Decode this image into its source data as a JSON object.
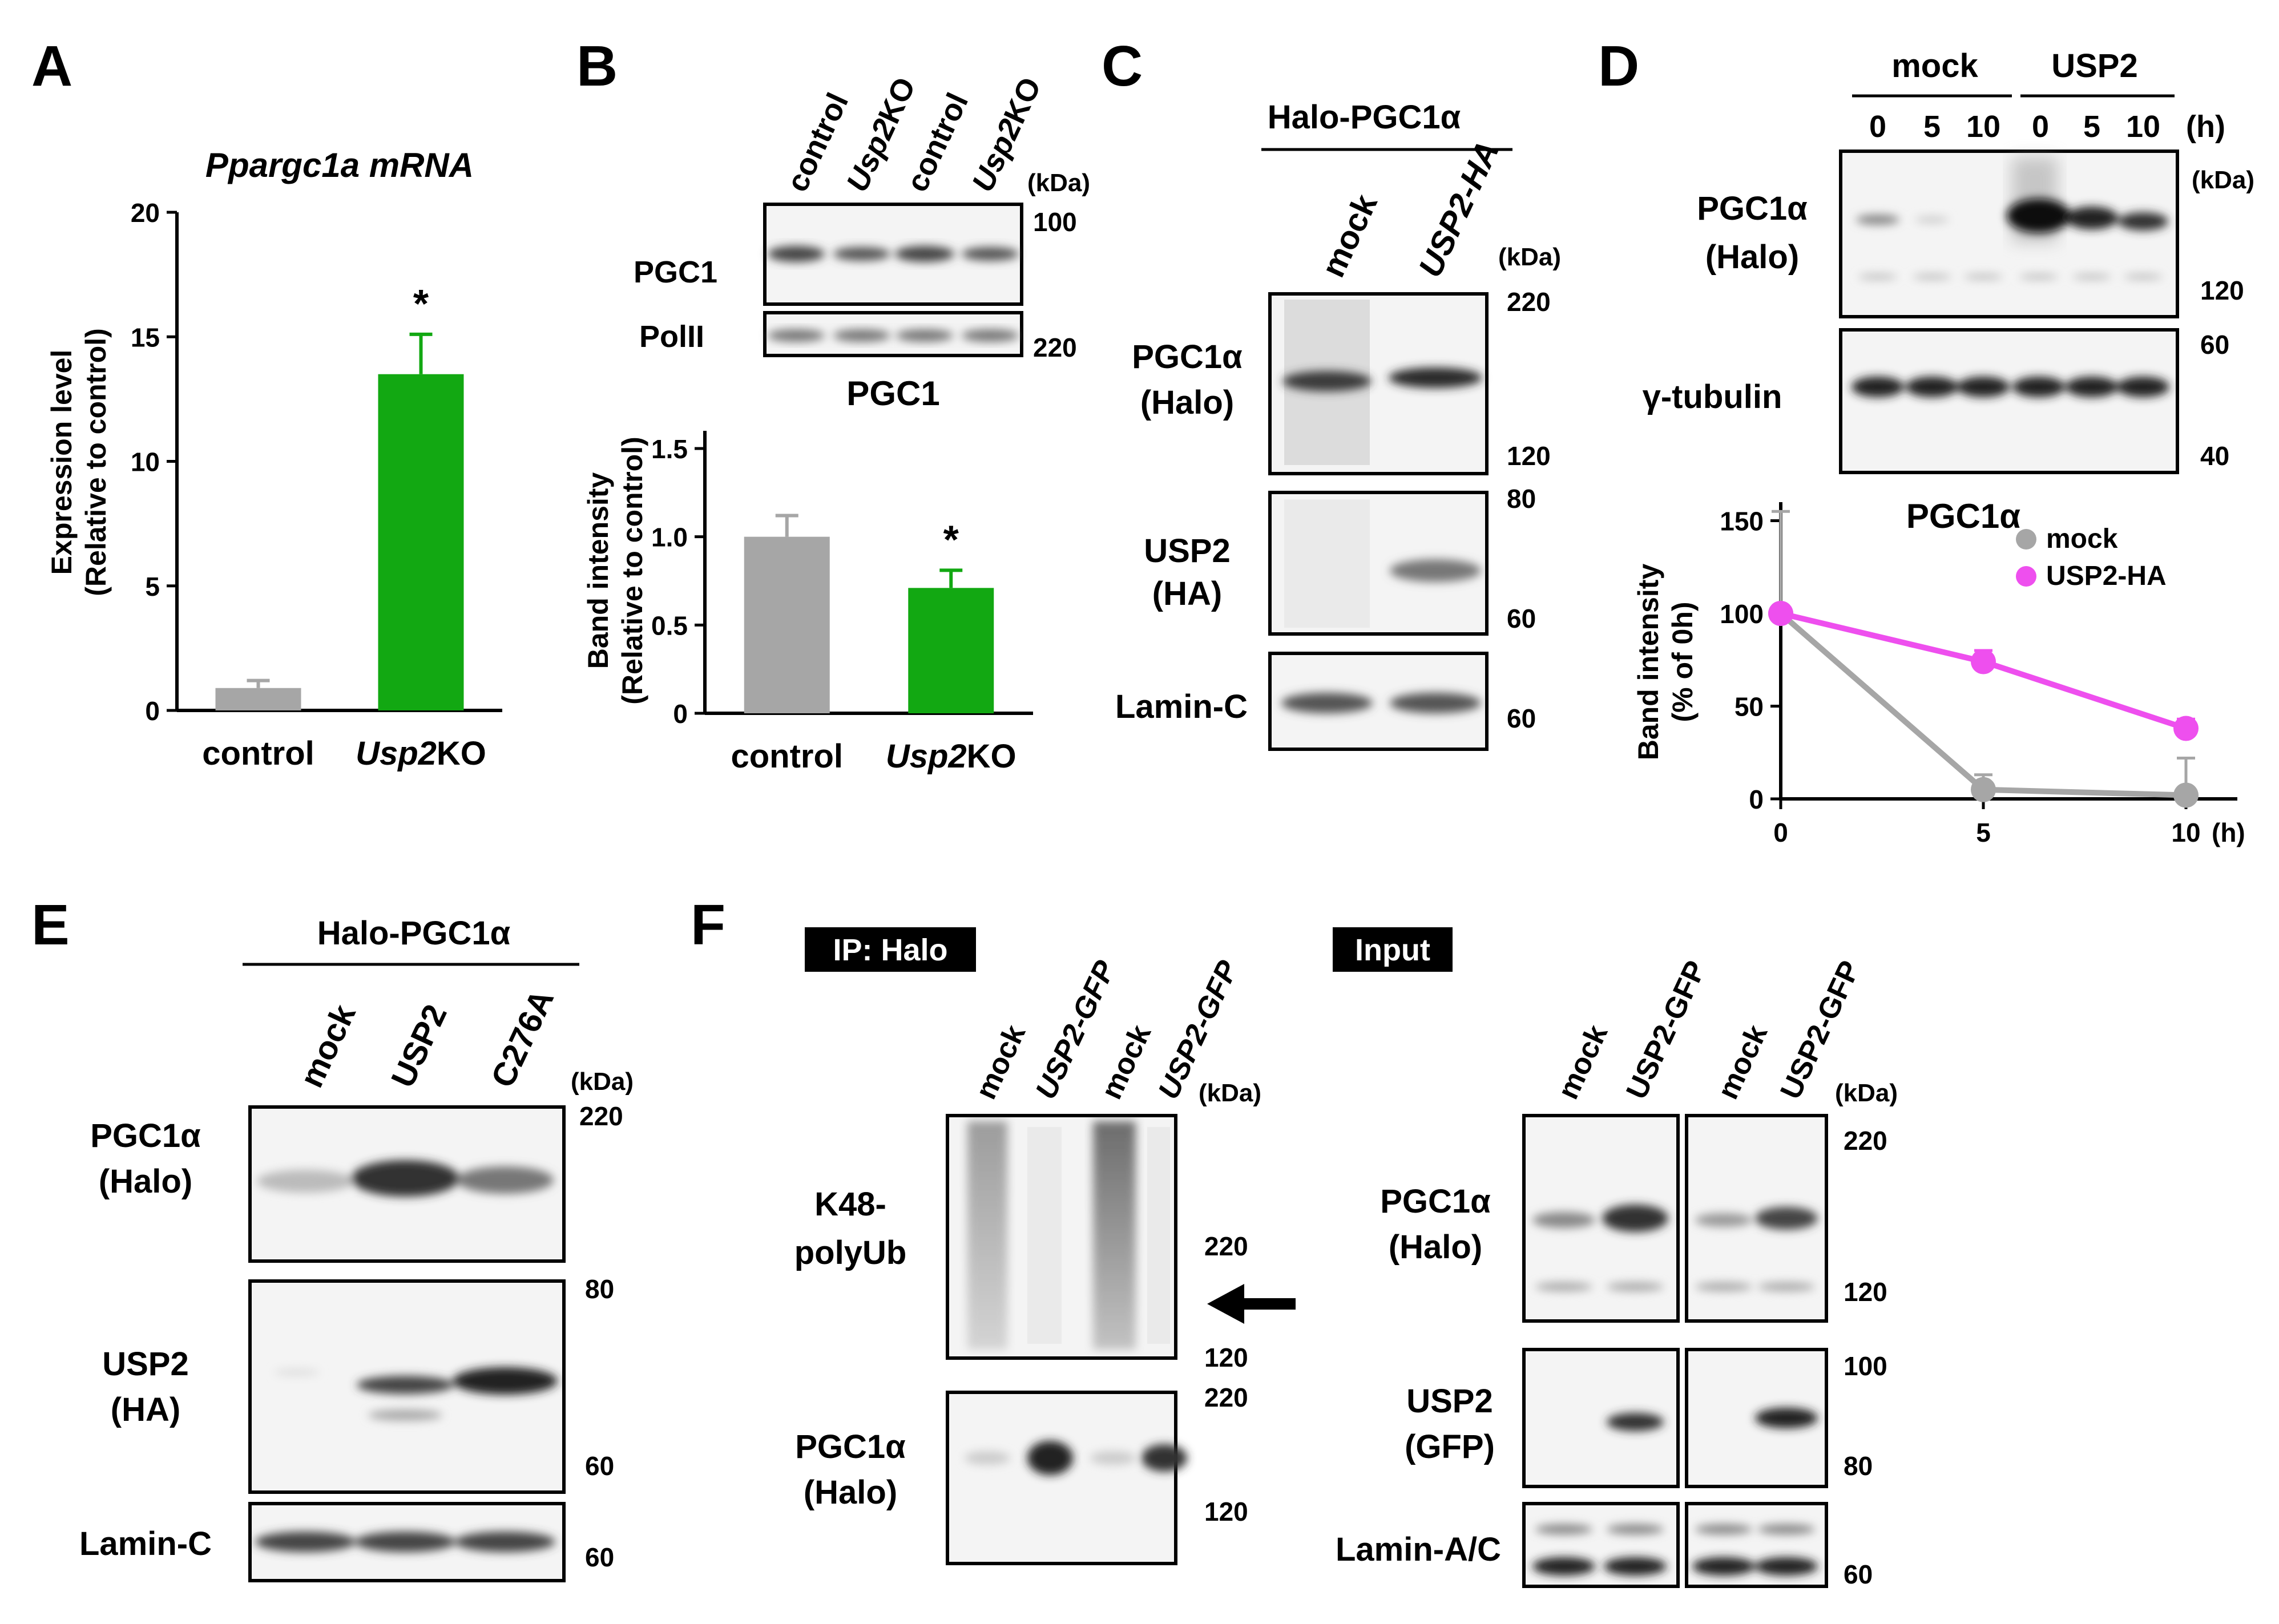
{
  "colors": {
    "gray": "#a6a6a6",
    "green": "#12a812",
    "magenta": "#ee4fee",
    "blot_bg": "#f4f4f4",
    "band": "#3a3a3a"
  },
  "panel_letters": [
    "A",
    "B",
    "C",
    "D",
    "E",
    "F"
  ],
  "panelA": {
    "chart_data": {
      "type": "bar",
      "title": "Ppargc1a mRNA",
      "ylabel_line1": "Expression level",
      "ylabel_line2": "(Relative to control)",
      "categories": [
        "control",
        "Usp2KO"
      ],
      "values": [
        0.9,
        13.5
      ],
      "errors": [
        0.3,
        1.6
      ],
      "bar_colors": [
        "#a6a6a6",
        "#12a812"
      ],
      "yticks": [
        "0",
        "5",
        "10",
        "15",
        "20"
      ],
      "ylim": [
        0,
        20
      ],
      "significance": [
        "",
        "*"
      ]
    }
  },
  "panelB": {
    "lane_labels": [
      "control",
      "Usp2KO",
      "control",
      "Usp2KO"
    ],
    "kda": "(kDa)",
    "rows": [
      {
        "label": "PGC1",
        "marker": "100"
      },
      {
        "label": "PolII",
        "marker": "220"
      }
    ],
    "chart_data": {
      "type": "bar",
      "title": "PGC1",
      "ylabel_line1": "Band intensity",
      "ylabel_line2": "(Relative to control)",
      "categories": [
        "control",
        "Usp2KO"
      ],
      "values": [
        1.0,
        0.71
      ],
      "errors": [
        0.12,
        0.1
      ],
      "bar_colors": [
        "#a6a6a6",
        "#12a812"
      ],
      "yticks": [
        "0",
        "0.5",
        "1.0",
        "1.5"
      ],
      "ylim": [
        0,
        1.6
      ],
      "significance": [
        "",
        "*"
      ]
    }
  },
  "panelC": {
    "header": "Halo-PGC1α",
    "lane_labels": [
      "mock",
      "USP2-HA"
    ],
    "kda": "(kDa)",
    "rows": [
      {
        "label1": "PGC1α",
        "label2": "(Halo)",
        "markers": [
          "220",
          "120"
        ]
      },
      {
        "label1": "USP2",
        "label2": "(HA)",
        "markers": [
          "80",
          "60"
        ]
      },
      {
        "label1": "Lamin-C",
        "label2": "",
        "markers": [
          "60"
        ]
      }
    ]
  },
  "panelD": {
    "groups": [
      "mock",
      "USP2"
    ],
    "times": [
      "0",
      "5",
      "10"
    ],
    "time_unit": "(h)",
    "kda": "(kDa)",
    "rows": [
      {
        "label1": "PGC1α",
        "label2": "(Halo)",
        "markers": [
          "120"
        ]
      },
      {
        "label1": "γ-tubulin",
        "label2": "",
        "markers": [
          "60",
          "40"
        ]
      }
    ],
    "chart_data": {
      "type": "line",
      "title": "PGC1α",
      "ylabel_line1": "Band intensity",
      "ylabel_line2": "(% of 0h)",
      "x": [
        0,
        5,
        10
      ],
      "xticks": [
        "0",
        "5",
        "10"
      ],
      "xunit": "(h)",
      "yticks": [
        "0",
        "50",
        "100",
        "150"
      ],
      "ylim": [
        0,
        160
      ],
      "legend_position": "top-right",
      "series": [
        {
          "name": "mock",
          "color": "#a6a6a6",
          "values": [
            100,
            5,
            2
          ],
          "errors": [
            55,
            8,
            20
          ]
        },
        {
          "name": "USP2-HA",
          "color": "#ee4fee",
          "values": [
            100,
            74,
            38
          ],
          "errors": [
            4,
            6,
            5
          ]
        }
      ]
    }
  },
  "panelE": {
    "header": "Halo-PGC1α",
    "lane_labels": [
      "mock",
      "USP2",
      "C276A"
    ],
    "kda": "(kDa)",
    "rows": [
      {
        "label1": "PGC1α",
        "label2": "(Halo)",
        "markers": [
          "220"
        ]
      },
      {
        "label1": "USP2",
        "label2": "(HA)",
        "markers": [
          "80",
          "60"
        ]
      },
      {
        "label1": "Lamin-C",
        "label2": "",
        "markers": [
          "60"
        ]
      }
    ]
  },
  "panelF": {
    "ip_label": "IP: Halo",
    "input_label": "Input",
    "lane_labels": [
      "mock",
      "USP2-GFP",
      "mock",
      "USP2-GFP"
    ],
    "kda": "(kDa)",
    "ip_rows": [
      {
        "label1": "K48-",
        "label2": "polyUb",
        "markers": [
          "220",
          "120"
        ]
      },
      {
        "label1": "PGC1α",
        "label2": "(Halo)",
        "markers": [
          "220",
          "120"
        ]
      }
    ],
    "input_rows": [
      {
        "label1": "PGC1α",
        "label2": "(Halo)",
        "markers": [
          "220",
          "120"
        ]
      },
      {
        "label1": "USP2",
        "label2": "(GFP)",
        "markers": [
          "100",
          "80"
        ]
      },
      {
        "label1": "Lamin-A/C",
        "label2": "",
        "markers": [
          "60"
        ]
      }
    ]
  }
}
